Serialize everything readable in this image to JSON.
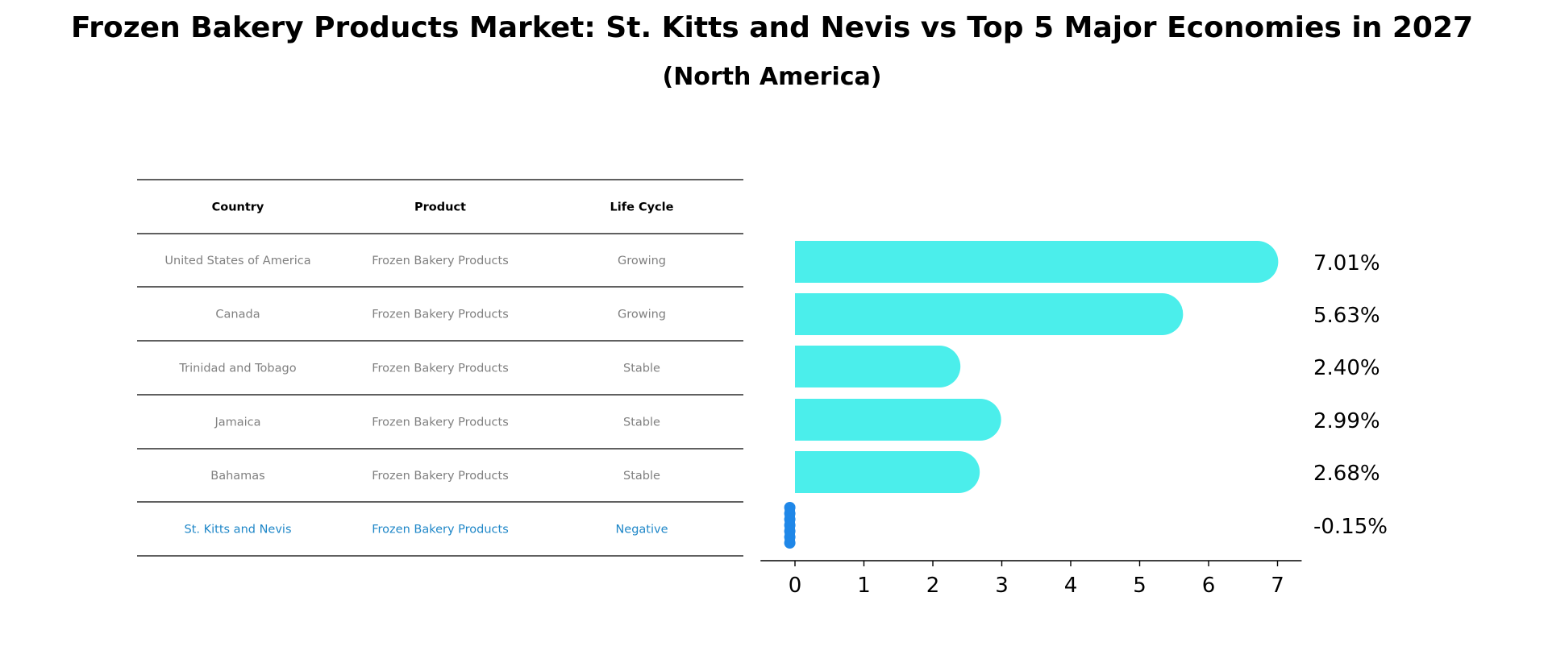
{
  "title": "Frozen Bakery Products Market: St. Kitts and Nevis vs Top 5 Major Economies in 2027",
  "subtitle": "(North America)",
  "table": {
    "headers": [
      "Country",
      "Product",
      "Life Cycle"
    ],
    "rows": [
      {
        "country": "United States of America",
        "product": "Frozen Bakery Products",
        "life_cycle": "Growing",
        "highlight": false
      },
      {
        "country": "Canada",
        "product": "Frozen Bakery Products",
        "life_cycle": "Growing",
        "highlight": false
      },
      {
        "country": "Trinidad and Tobago",
        "product": "Frozen Bakery Products",
        "life_cycle": "Stable",
        "highlight": false
      },
      {
        "country": "Jamaica",
        "product": "Frozen Bakery Products",
        "life_cycle": "Stable",
        "highlight": false
      },
      {
        "country": "Bahamas",
        "product": "Frozen Bakery Products",
        "life_cycle": "Stable",
        "highlight": false
      },
      {
        "country": "St. Kitts and Nevis",
        "product": "Frozen Bakery Products",
        "life_cycle": "Negative",
        "highlight": true
      }
    ]
  },
  "chart_data": {
    "type": "bar",
    "orientation": "horizontal",
    "categories": [
      "United States of America",
      "Canada",
      "Trinidad and Tobago",
      "Jamaica",
      "Bahamas",
      "St. Kitts and Nevis"
    ],
    "values": [
      7.01,
      5.63,
      2.4,
      2.99,
      2.68,
      -0.15
    ],
    "value_labels": [
      "7.01%",
      "5.63%",
      "2.40%",
      "2.99%",
      "2.68%",
      "-0.15%"
    ],
    "xticks": [
      0,
      1,
      2,
      3,
      4,
      5,
      6,
      7
    ],
    "xlim": [
      -0.5,
      7.35
    ],
    "grid": false,
    "colors": {
      "bar": "#4beeeb",
      "highlight_bar": "#1f87e8",
      "text_default": "#808080",
      "text_highlight": "#1f87c8",
      "header_text": "#000000",
      "rule": "#000000"
    }
  }
}
